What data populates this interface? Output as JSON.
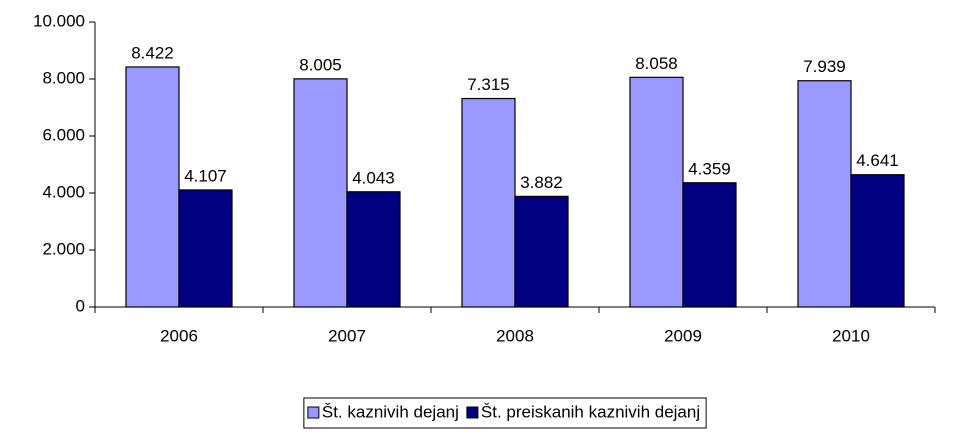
{
  "chart_data": {
    "type": "bar",
    "categories": [
      "2006",
      "2007",
      "2008",
      "2009",
      "2010"
    ],
    "series": [
      {
        "name": "Št. kaznivih dejanj",
        "color": "#9999ff",
        "values": [
          8422,
          8005,
          7315,
          8058,
          7939
        ],
        "value_labels": [
          "8.422",
          "8.005",
          "7.315",
          "8.058",
          "7.939"
        ]
      },
      {
        "name": "Št. preiskanih kaznivih dejanj",
        "color": "#000080",
        "values": [
          4107,
          4043,
          3882,
          4359,
          4641
        ],
        "value_labels": [
          "4.107",
          "4.043",
          "3.882",
          "4.359",
          "4.641"
        ]
      }
    ],
    "ylim": [
      0,
      10000
    ],
    "yticks": [
      0,
      {
        "value": 2000,
        "label": "2.000"
      },
      {
        "value": 4000,
        "label": "4.000"
      },
      {
        "value": 6000,
        "label": "6.000"
      },
      {
        "value": 8000,
        "label": "8.000"
      },
      {
        "value": 10000,
        "label": "10.000"
      }
    ],
    "grid": false,
    "legend": "bottom"
  }
}
